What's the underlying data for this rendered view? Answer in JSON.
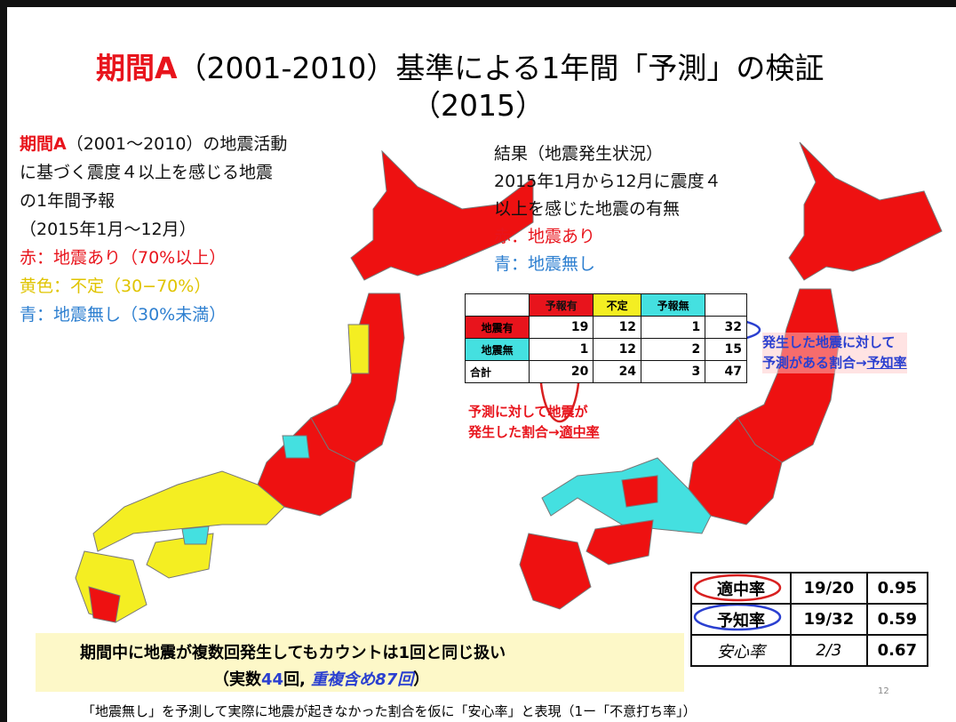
{
  "title": {
    "lead": "期間A",
    "rest": "（2001-2010）基準による1年間「予測」の検証",
    "line2": "（2015）"
  },
  "left_legend": {
    "lead": "期間A",
    "lines": [
      "（2001～2010）の地震活動",
      "に基づく震度４以上を感じる地震",
      "の1年間予報",
      "（2015年1月～12月）"
    ],
    "red": "赤：地震あり（70%以上）",
    "yellow": "黄色：不定（30−70%）",
    "blue": "青：地震無し（30%未満）"
  },
  "right_legend": {
    "lines": [
      "結果（地震発生状況）",
      "2015年1月から12月に震度４",
      "以上を感じた地震の有無"
    ],
    "red": "赤：地震あり",
    "blue": "青：地震無し"
  },
  "table": {
    "header": [
      "",
      "予報有",
      "不定",
      "予報無",
      ""
    ],
    "rows": [
      [
        "地震有",
        19,
        12,
        1,
        32
      ],
      [
        "地震無",
        1,
        12,
        2,
        15
      ],
      [
        "合計",
        20,
        24,
        3,
        47
      ]
    ]
  },
  "annotations": {
    "precision": {
      "line1": "予測に対して地震が",
      "line2": "発生した割合→",
      "term": "適中率"
    },
    "recall": {
      "line1": "発生した地震に対して",
      "line2": "予測がある割合→",
      "term": "予知率"
    }
  },
  "summary": [
    [
      "適中率",
      "19/20",
      "0.95"
    ],
    [
      "予知率",
      "19/32",
      "0.59"
    ],
    [
      "安心率",
      "2/3",
      "0.67"
    ]
  ],
  "box": {
    "line1": "期間中に地震が複数回発生してもカウントは1回と同じ扱い",
    "line2": [
      "（実数",
      "44",
      "回, ",
      "重複含め87回",
      "）"
    ]
  },
  "page_number": "12",
  "footer": "「地震無し」を予測して実際に地震が起きなかった割合を仮に「安心率」と表現（1ー「不意打ち率」）"
}
